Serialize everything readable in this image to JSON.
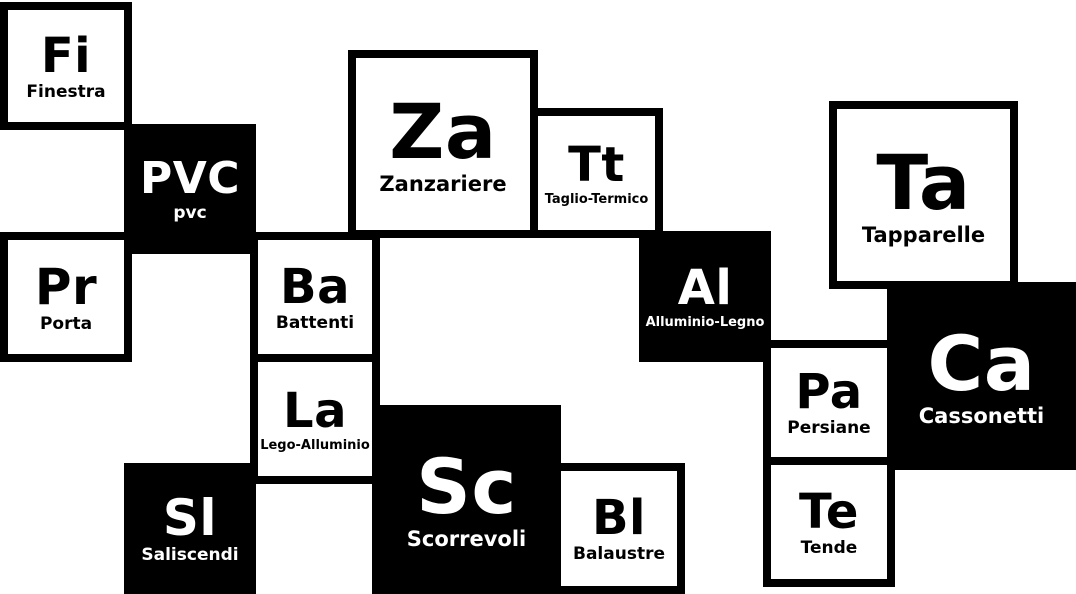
{
  "tiles": [
    {
      "symbol": "Fi",
      "name": "Finestra"
    },
    {
      "symbol": "PVC",
      "name": "pvc"
    },
    {
      "symbol": "Pr",
      "name": "Porta"
    },
    {
      "symbol": "Za",
      "name": "Zanzariere"
    },
    {
      "symbol": "Tt",
      "name": "Taglio-Termico"
    },
    {
      "symbol": "Ba",
      "name": "Battenti"
    },
    {
      "symbol": "La",
      "name": "Lego-Alluminio"
    },
    {
      "symbol": "Sl",
      "name": "Saliscendi"
    },
    {
      "symbol": "Sc",
      "name": "Scorrevoli"
    },
    {
      "symbol": "Bl",
      "name": "Balaustre"
    },
    {
      "symbol": "Al",
      "name": "Alluminio-Legno"
    },
    {
      "symbol": "Ta",
      "name": "Tapparelle"
    },
    {
      "symbol": "Ca",
      "name": "Cassonetti"
    },
    {
      "symbol": "Pa",
      "name": "Persiane"
    },
    {
      "symbol": "Te",
      "name": "Tende"
    }
  ]
}
